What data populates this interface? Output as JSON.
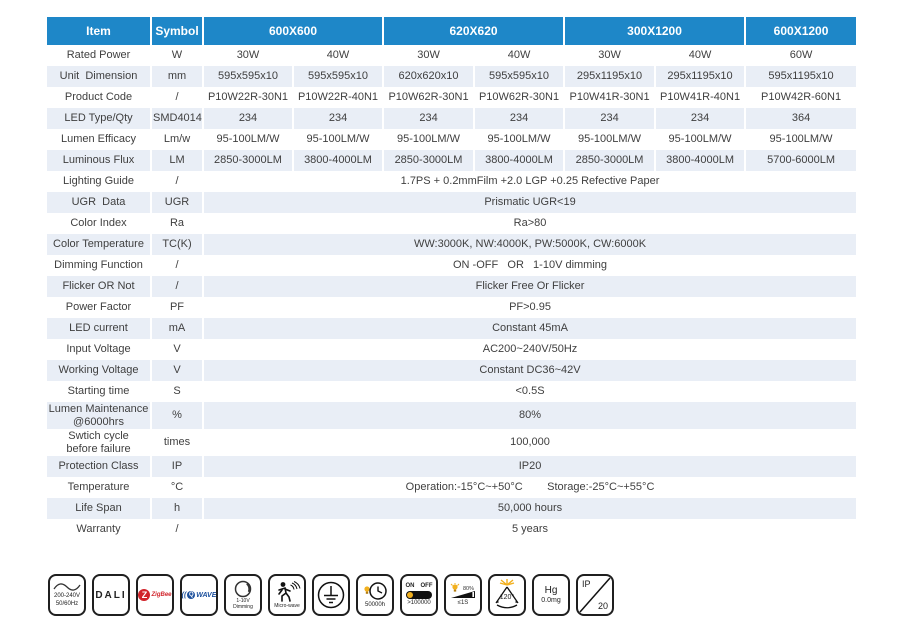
{
  "colors": {
    "header_bg": "#1e87c8",
    "row_alt": "#e9eef6",
    "body_text": "#3f3f3f",
    "zigbee_red": "#d1232a",
    "zwave_blue": "#1b4f9c",
    "accent_yellow": "#f2b01e",
    "icon_outline": "#1f1f1f"
  },
  "table": {
    "headers": [
      "Item",
      "Symbol",
      "600X600",
      "620X620",
      "300X1200",
      "600X1200"
    ],
    "rows": [
      {
        "item": "Rated Power",
        "symbol": "W",
        "values": [
          "30W",
          "40W",
          "30W",
          "40W",
          "30W",
          "40W",
          "60W"
        ]
      },
      {
        "item": "Unit  Dimension",
        "symbol": "mm",
        "values": [
          "595x595x10",
          "595x595x10",
          "620x620x10",
          "595x595x10",
          "295x1195x10",
          "295x1195x10",
          "595x1195x10"
        ]
      },
      {
        "item": "Product Code",
        "symbol": "/",
        "values": [
          "P10W22R-30N1",
          "P10W22R-40N1",
          "P10W62R-30N1",
          "P10W62R-30N1",
          "P10W41R-30N1",
          "P10W41R-40N1",
          "P10W42R-60N1"
        ]
      },
      {
        "item": "LED Type/Qty",
        "symbol": "SMD4014",
        "values": [
          "234",
          "234",
          "234",
          "234",
          "234",
          "234",
          "364"
        ]
      },
      {
        "item": "Lumen Efficacy",
        "symbol": "Lm/w",
        "values": [
          "95-100LM/W",
          "95-100LM/W",
          "95-100LM/W",
          "95-100LM/W",
          "95-100LM/W",
          "95-100LM/W",
          "95-100LM/W"
        ]
      },
      {
        "item": "Luminous Flux",
        "symbol": "LM",
        "values": [
          "2850-3000LM",
          "3800-4000LM",
          "2850-3000LM",
          "3800-4000LM",
          "2850-3000LM",
          "3800-4000LM",
          "5700-6000LM"
        ]
      },
      {
        "item": "Lighting Guide",
        "symbol": "/",
        "merged": "1.7PS + 0.2mmFilm +2.0 LGP +0.25 Refective Paper"
      },
      {
        "item": "UGR  Data",
        "symbol": "UGR",
        "merged": "Prismatic UGR<19"
      },
      {
        "item": "Color Index",
        "symbol": "Ra",
        "merged": "Ra>80"
      },
      {
        "item": "Color Temperature",
        "symbol": "TC(K)",
        "merged": "WW:3000K, NW:4000K, PW:5000K, CW:6000K"
      },
      {
        "item": "Dimming Function",
        "symbol": "/",
        "merged": "ON -OFF   OR   1-10V dimming"
      },
      {
        "item": "Flicker OR Not",
        "symbol": "/",
        "merged": "Flicker Free Or Flicker"
      },
      {
        "item": "Power Factor",
        "symbol": "PF",
        "merged": "PF>0.95"
      },
      {
        "item": "LED current",
        "symbol": "mA",
        "merged": "Constant 45mA"
      },
      {
        "item": "Input Voltage",
        "symbol": "V",
        "merged": "AC200~240V/50Hz"
      },
      {
        "item": "Working Voltage",
        "symbol": "V",
        "merged": "Constant DC36~42V"
      },
      {
        "item": "Starting time",
        "symbol": "S",
        "merged": "<0.5S"
      },
      {
        "item": "Lumen Maintenance\n@6000hrs",
        "symbol": "%",
        "merged": "80%",
        "tall": true
      },
      {
        "item": "Swtich cycle\nbefore failure",
        "symbol": "times",
        "merged": "100,000",
        "tall": true
      },
      {
        "item": "Protection Class",
        "symbol": "IP",
        "merged": "IP20"
      },
      {
        "item": "Temperature",
        "symbol": "°C",
        "merged": "Operation:-15°C~+50°C        Storage:-25°C~+55°C"
      },
      {
        "item": "Life Span",
        "symbol": "h",
        "merged": "50,000 hours"
      },
      {
        "item": "Warranty",
        "symbol": "/",
        "merged": "5 years"
      }
    ]
  },
  "icons": {
    "ac_voltage": {
      "line1": "200-240V",
      "line2": "50/60Hz"
    },
    "dali": {
      "label": "DALI"
    },
    "zigbee": {
      "z": "Z",
      "label": "ZigBee"
    },
    "zwave": {
      "arcs": "((",
      "q": "Q",
      "label": "WAVE"
    },
    "dimming": {
      "line1": "1-10V",
      "line2": "Dimming"
    },
    "microwave": {
      "label": "Micro-wave"
    },
    "lifetime": {
      "label": "50000h"
    },
    "switch_cycle": {
      "on": "ON",
      "off": "OFF",
      "label": ">100000"
    },
    "fast_start": {
      "pct": "80%",
      "label": "≤1S"
    },
    "beam_angle": {
      "label": "120°"
    },
    "mercury": {
      "line1": "Hg",
      "line2": "0.0mg"
    },
    "ip_rating": {
      "line1": "IP",
      "line2": "20"
    }
  }
}
